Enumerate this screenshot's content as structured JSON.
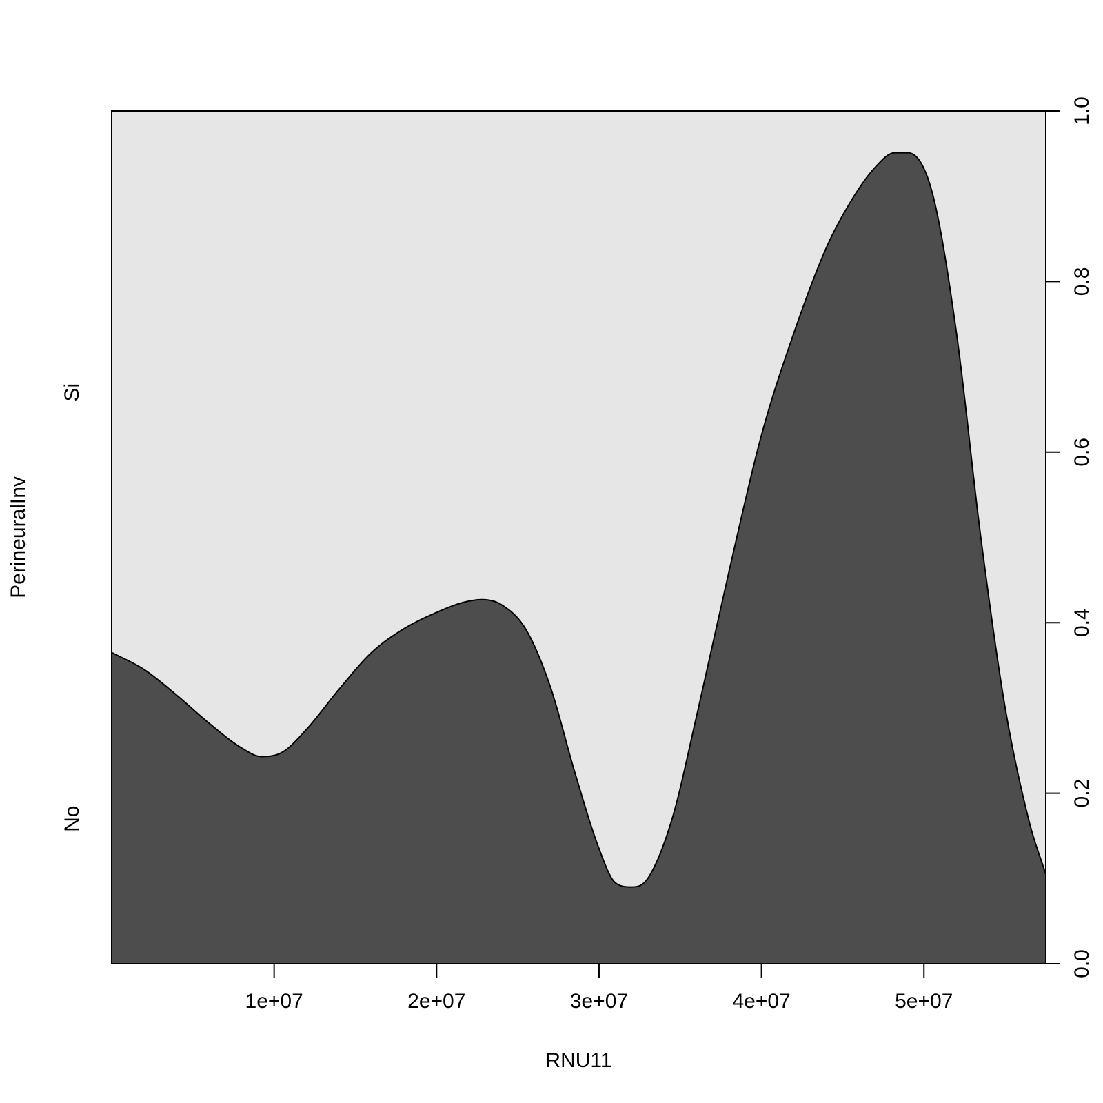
{
  "chart_data": {
    "type": "area",
    "subtype": "conditional-density",
    "title": "",
    "xlabel": "RNU11",
    "ylabel": "PerineuralInv",
    "xlim": [
      0,
      57500000
    ],
    "ylim": [
      0,
      1
    ],
    "x_ticks": [
      10000000,
      20000000,
      30000000,
      40000000,
      50000000
    ],
    "x_tick_labels": [
      "1e+07",
      "2e+07",
      "3e+07",
      "4e+07",
      "5e+07"
    ],
    "y_ticks": [
      0,
      0.2,
      0.4,
      0.6,
      0.8,
      1
    ],
    "y_tick_labels": [
      "0.0",
      "0.2",
      "0.4",
      "0.6",
      "0.8",
      "1.0"
    ],
    "categories": [
      "No",
      "Si"
    ],
    "category_label_positions": [
      0.17,
      0.67
    ],
    "grid": false,
    "legend": "none",
    "colors": {
      "No": "#4d4d4d",
      "Si": "#e6e6e6",
      "border": "#000000"
    },
    "series": [
      {
        "name": "No",
        "x": [
          0,
          2000000,
          4000000,
          6000000,
          8000000,
          9200000,
          10500000,
          12000000,
          14000000,
          16000000,
          18000000,
          20000000,
          21500000,
          22800000,
          24000000,
          25500000,
          27000000,
          28500000,
          30000000,
          31000000,
          32000000,
          33000000,
          34500000,
          36000000,
          38000000,
          40000000,
          42000000,
          44000000,
          45500000,
          47000000,
          48200000,
          49000000,
          50500000,
          52000000,
          53500000,
          55000000,
          56500000,
          57500000
        ],
        "y": [
          0.365,
          0.345,
          0.315,
          0.282,
          0.253,
          0.243,
          0.248,
          0.275,
          0.322,
          0.365,
          0.393,
          0.412,
          0.423,
          0.427,
          0.421,
          0.392,
          0.325,
          0.225,
          0.135,
          0.095,
          0.09,
          0.1,
          0.17,
          0.29,
          0.46,
          0.62,
          0.74,
          0.84,
          0.894,
          0.934,
          0.951,
          0.951,
          0.905,
          0.74,
          0.5,
          0.3,
          0.165,
          0.105
        ]
      }
    ]
  }
}
